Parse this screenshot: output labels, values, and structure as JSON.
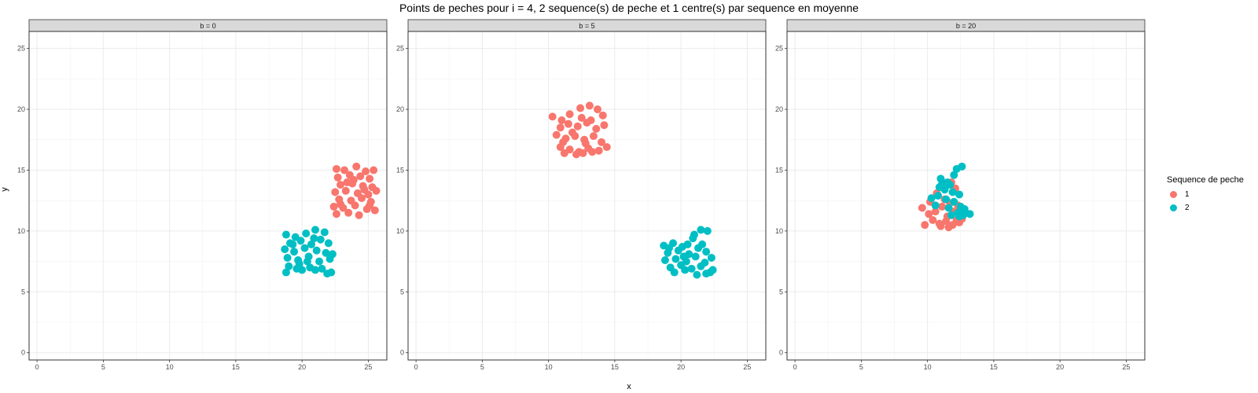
{
  "chart_data": {
    "type": "scatter",
    "title": "Points de peches pour i = 4, 2 sequence(s) de peche et 1 centre(s) par sequence en moyenne",
    "xlabel": "x",
    "ylabel": "y",
    "xlim": [
      -0.6,
      26.4
    ],
    "ylim": [
      -0.6,
      26.4
    ],
    "x_ticks": [
      0,
      5,
      10,
      15,
      20,
      25
    ],
    "y_ticks": [
      0,
      5,
      10,
      15,
      20,
      25
    ],
    "grid": true,
    "legend": {
      "title": "Sequence de peche",
      "position": "right",
      "entries": [
        {
          "label": "1",
          "color": "#F8766D"
        },
        {
          "label": "2",
          "color": "#00BFC4"
        }
      ]
    },
    "panels": [
      {
        "strip": "b = 0",
        "series": [
          {
            "name": "1",
            "color": "#F8766D",
            "points": [
              [
                22.6,
                15.1
              ],
              [
                23.2,
                15.0
              ],
              [
                24.1,
                15.3
              ],
              [
                24.8,
                14.9
              ],
              [
                25.4,
                15.0
              ],
              [
                22.7,
                14.4
              ],
              [
                23.6,
                14.6
              ],
              [
                24.4,
                14.5
              ],
              [
                25.1,
                14.3
              ],
              [
                22.9,
                13.8
              ],
              [
                23.8,
                13.9
              ],
              [
                24.6,
                13.7
              ],
              [
                25.3,
                13.6
              ],
              [
                22.5,
                13.2
              ],
              [
                23.3,
                13.3
              ],
              [
                24.2,
                13.1
              ],
              [
                25.0,
                13.0
              ],
              [
                25.6,
                13.3
              ],
              [
                22.8,
                12.6
              ],
              [
                23.7,
                12.5
              ],
              [
                24.5,
                12.7
              ],
              [
                25.2,
                12.4
              ],
              [
                22.4,
                12.0
              ],
              [
                23.1,
                11.9
              ],
              [
                24.0,
                12.1
              ],
              [
                24.9,
                11.8
              ],
              [
                25.5,
                11.7
              ],
              [
                22.6,
                11.4
              ],
              [
                23.5,
                11.5
              ],
              [
                24.3,
                11.3
              ],
              [
                24.7,
                13.4
              ],
              [
                23.9,
                14.2
              ],
              [
                22.9,
                12.2
              ],
              [
                25.1,
                12.1
              ],
              [
                23.4,
                14.0
              ]
            ]
          },
          {
            "name": "2",
            "color": "#00BFC4",
            "points": [
              [
                18.8,
                9.7
              ],
              [
                19.5,
                9.5
              ],
              [
                20.3,
                9.8
              ],
              [
                21.0,
                10.1
              ],
              [
                21.7,
                9.9
              ],
              [
                19.1,
                9.0
              ],
              [
                19.9,
                9.2
              ],
              [
                20.7,
                8.9
              ],
              [
                21.4,
                9.3
              ],
              [
                22.0,
                9.0
              ],
              [
                18.7,
                8.5
              ],
              [
                19.4,
                8.3
              ],
              [
                20.2,
                8.6
              ],
              [
                21.1,
                8.4
              ],
              [
                21.8,
                8.2
              ],
              [
                18.9,
                7.8
              ],
              [
                19.7,
                7.6
              ],
              [
                20.5,
                7.9
              ],
              [
                21.3,
                7.5
              ],
              [
                22.1,
                7.7
              ],
              [
                19.0,
                7.1
              ],
              [
                19.8,
                7.3
              ],
              [
                20.6,
                7.0
              ],
              [
                21.5,
                6.9
              ],
              [
                22.2,
                6.6
              ],
              [
                18.8,
                6.6
              ],
              [
                20.0,
                6.8
              ],
              [
                21.0,
                6.8
              ],
              [
                19.3,
                8.9
              ],
              [
                20.9,
                9.4
              ],
              [
                22.3,
                8.1
              ],
              [
                19.6,
                6.9
              ],
              [
                20.4,
                7.5
              ],
              [
                21.9,
                6.5
              ]
            ]
          }
        ]
      },
      {
        "strip": "b = 5",
        "series": [
          {
            "name": "1",
            "color": "#F8766D",
            "points": [
              [
                10.3,
                19.4
              ],
              [
                11.0,
                19.1
              ],
              [
                11.6,
                19.6
              ],
              [
                12.4,
                20.1
              ],
              [
                13.1,
                20.3
              ],
              [
                13.7,
                20.0
              ],
              [
                14.1,
                19.5
              ],
              [
                10.9,
                18.5
              ],
              [
                11.5,
                18.8
              ],
              [
                12.2,
                18.6
              ],
              [
                12.9,
                18.9
              ],
              [
                13.6,
                18.4
              ],
              [
                14.2,
                18.7
              ],
              [
                10.6,
                17.9
              ],
              [
                11.3,
                17.6
              ],
              [
                12.0,
                17.8
              ],
              [
                12.7,
                17.5
              ],
              [
                13.4,
                17.8
              ],
              [
                14.0,
                17.3
              ],
              [
                10.9,
                16.9
              ],
              [
                11.6,
                16.7
              ],
              [
                12.3,
                16.5
              ],
              [
                13.0,
                16.8
              ],
              [
                13.8,
                16.6
              ],
              [
                14.4,
                16.9
              ],
              [
                11.2,
                16.4
              ],
              [
                12.1,
                16.3
              ],
              [
                12.6,
                16.4
              ],
              [
                13.3,
                16.5
              ],
              [
                12.5,
                19.3
              ],
              [
                11.8,
                18.1
              ],
              [
                13.2,
                19.1
              ],
              [
                12.8,
                17.2
              ],
              [
                11.1,
                17.3
              ]
            ]
          },
          {
            "name": "2",
            "color": "#00BFC4",
            "points": [
              [
                18.7,
                8.8
              ],
              [
                19.4,
                9.0
              ],
              [
                20.1,
                8.7
              ],
              [
                20.9,
                9.4
              ],
              [
                21.5,
                10.1
              ],
              [
                22.0,
                10.0
              ],
              [
                19.0,
                8.2
              ],
              [
                19.8,
                8.4
              ],
              [
                20.6,
                8.1
              ],
              [
                21.3,
                8.6
              ],
              [
                21.9,
                8.3
              ],
              [
                22.3,
                7.8
              ],
              [
                18.8,
                7.6
              ],
              [
                19.6,
                7.7
              ],
              [
                20.4,
                7.5
              ],
              [
                21.1,
                7.9
              ],
              [
                21.8,
                7.4
              ],
              [
                19.2,
                7.0
              ],
              [
                20.0,
                7.2
              ],
              [
                20.8,
                6.9
              ],
              [
                21.5,
                7.1
              ],
              [
                22.2,
                6.6
              ],
              [
                19.5,
                6.6
              ],
              [
                20.3,
                6.8
              ],
              [
                21.2,
                6.4
              ],
              [
                21.9,
                6.5
              ],
              [
                20.5,
                8.9
              ],
              [
                21.0,
                9.7
              ],
              [
                19.1,
                8.6
              ],
              [
                20.2,
                7.9
              ],
              [
                22.4,
                6.8
              ],
              [
                21.6,
                8.9
              ]
            ]
          }
        ]
      },
      {
        "strip": "b = 20",
        "series": [
          {
            "name": "1",
            "color": "#F8766D",
            "points": [
              [
                9.6,
                11.9
              ],
              [
                10.1,
                11.4
              ],
              [
                10.6,
                11.6
              ],
              [
                11.1,
                12.0
              ],
              [
                11.7,
                12.3
              ],
              [
                12.3,
                12.1
              ],
              [
                9.8,
                10.5
              ],
              [
                10.4,
                10.9
              ],
              [
                10.9,
                10.6
              ],
              [
                11.4,
                10.8
              ],
              [
                11.9,
                10.5
              ],
              [
                12.4,
                10.7
              ],
              [
                10.7,
                13.1
              ],
              [
                11.3,
                12.6
              ],
              [
                11.8,
                14.0
              ],
              [
                12.1,
                13.5
              ],
              [
                10.2,
                12.4
              ],
              [
                11.5,
                11.2
              ],
              [
                12.0,
                11.6
              ],
              [
                12.6,
                11.0
              ],
              [
                11.0,
                10.4
              ],
              [
                11.6,
                10.3
              ],
              [
                12.2,
                10.9
              ]
            ]
          },
          {
            "name": "2",
            "color": "#00BFC4",
            "points": [
              [
                10.3,
                12.7
              ],
              [
                10.8,
                12.9
              ],
              [
                11.3,
                13.4
              ],
              [
                11.9,
                13.2
              ],
              [
                12.4,
                13.0
              ],
              [
                11.0,
                14.3
              ],
              [
                11.5,
                14.0
              ],
              [
                12.2,
                15.1
              ],
              [
                12.6,
                15.3
              ],
              [
                10.9,
                13.6
              ],
              [
                11.7,
                13.8
              ],
              [
                12.0,
                12.4
              ],
              [
                12.5,
                12.0
              ],
              [
                11.6,
                11.9
              ],
              [
                12.3,
                11.5
              ],
              [
                12.8,
                11.8
              ],
              [
                13.2,
                11.4
              ],
              [
                11.8,
                11.3
              ],
              [
                12.4,
                11.2
              ],
              [
                10.6,
                12.1
              ],
              [
                11.4,
                12.6
              ],
              [
                12.0,
                14.6
              ],
              [
                11.1,
                13.9
              ],
              [
                12.7,
                11.3
              ]
            ]
          }
        ]
      }
    ]
  }
}
